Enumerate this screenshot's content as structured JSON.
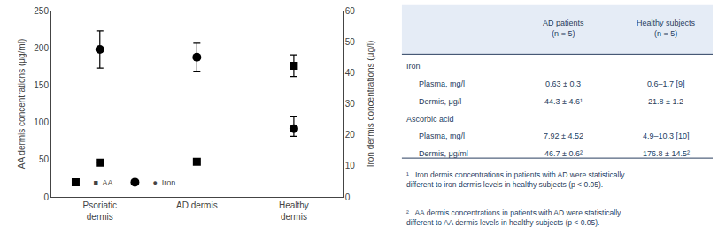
{
  "chart_data": {
    "type": "scatter",
    "categories": [
      "Psoriatic\ndermis",
      "AD dermis",
      "Healthy\ndermis"
    ],
    "series": [
      {
        "name": "■  AA",
        "color": "black",
        "marker": "square",
        "axis": "y",
        "values": [
          46,
          47,
          176
        ],
        "errors": [
          0,
          0,
          14.5
        ]
      },
      {
        "name": "●  Iron",
        "color": "black",
        "marker": "circle",
        "axis": "y2",
        "values": [
          47.5,
          45,
          22
        ],
        "errors_lo": [
          6,
          4.5,
          2.5
        ],
        "errors_hi": [
          6,
          4.5,
          4
        ]
      }
    ],
    "ylabel": "AA dermis concentrations (μg/ml)",
    "y2label": "Iron dermis concentrations (μg/l)",
    "ylim": [
      0,
      250
    ],
    "yticks": [
      0,
      50,
      100,
      150,
      200,
      250
    ],
    "y2lim": [
      0,
      60
    ],
    "y2ticks": [
      0,
      10,
      20,
      30,
      40,
      50,
      60
    ],
    "grid": false,
    "legend": "lower left",
    "table": {
      "columns": [
        "AD patients\n(n = 5)",
        "Healthy subjects\n(n = 5)"
      ],
      "sections": [
        {
          "name": "Iron",
          "rows": [
            [
              "Plasma, mg/l",
              "0.63 ± 0.3",
              "0.6–1.7 [9]"
            ],
            [
              "Dermis, μg/l",
              "44.3 ± 4.6¹",
              "21.8 ± 1.2"
            ]
          ]
        },
        {
          "name": "Ascorbic acid",
          "rows": [
            [
              "Plasma, mg/l",
              "7.92 ± 4.52",
              "4.9–10.3 [10]"
            ],
            [
              "Dermis, μg/ml",
              "46.7 ± 0.6²",
              "176.8 ± 14.5²"
            ]
          ]
        }
      ],
      "footnotes": [
        "¹   Iron dermis concentrations in patients with AD were statistically\ndifferent to iron dermis levels in healthy subjects (p < 0.05).",
        "²   AA dermis concentrations in patients with AD were statistically\ndifferent to AA dermis levels in healthy subjects (p < 0.05)."
      ]
    }
  }
}
